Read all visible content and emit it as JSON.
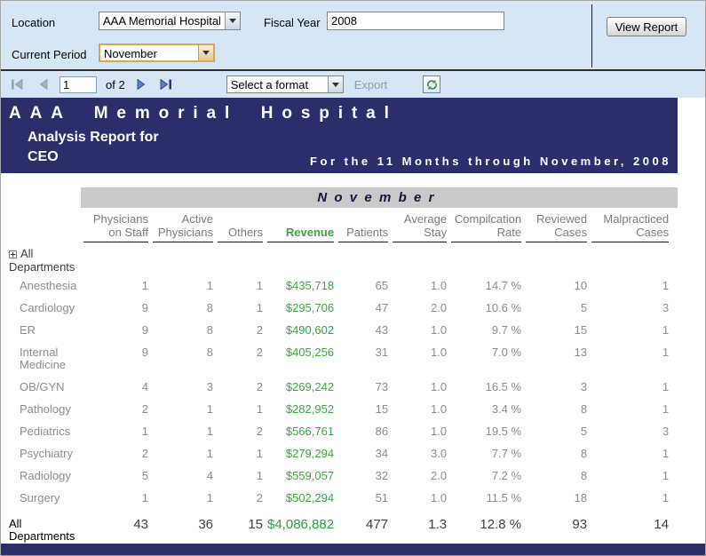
{
  "params": {
    "location_label": "Location",
    "location_value": "AAA Memorial Hospital",
    "fiscal_year_label": "Fiscal Year",
    "fiscal_year_value": "2008",
    "current_period_label": "Current Period",
    "current_period_value": "November",
    "view_report_label": "View Report"
  },
  "toolbar": {
    "page_value": "1",
    "of_label": "of 2",
    "format_value": "Select a format",
    "export_label": "Export",
    "icons": [
      "first-page-icon",
      "previous-page-icon",
      "next-page-icon",
      "last-page-icon",
      "refresh-icon"
    ]
  },
  "report": {
    "title": "AAA Memorial Hospital",
    "subtitle": "Analysis Report for",
    "audience": "CEO",
    "period_line": "For the 11 Months through November, 2008",
    "month_band": "November"
  },
  "table": {
    "columns": [
      "Physicians on Staff",
      "Active Physicians",
      "Others",
      "Revenue",
      "Patients",
      "Average Stay",
      "Compilcation Rate",
      "Reviewed Cases",
      "Malpracticed Cases"
    ],
    "expand_row_label": "All Departments",
    "rows": [
      {
        "name": "Anesthesia",
        "values": [
          "1",
          "1",
          "1",
          "$435,718",
          "65",
          "1.0",
          "14.7 %",
          "10",
          "1"
        ]
      },
      {
        "name": "Cardiology",
        "values": [
          "9",
          "8",
          "1",
          "$295,706",
          "47",
          "2.0",
          "10.6 %",
          "5",
          "3"
        ]
      },
      {
        "name": "ER",
        "values": [
          "9",
          "8",
          "2",
          "$490,602",
          "43",
          "1.0",
          "9.7 %",
          "15",
          "1"
        ]
      },
      {
        "name": "Internal Medicine",
        "values": [
          "9",
          "8",
          "2",
          "$405,256",
          "31",
          "1.0",
          "7.0 %",
          "13",
          "1"
        ]
      },
      {
        "name": "OB/GYN",
        "values": [
          "4",
          "3",
          "2",
          "$269,242",
          "73",
          "1.0",
          "16.5 %",
          "3",
          "1"
        ]
      },
      {
        "name": "Pathology",
        "values": [
          "2",
          "1",
          "1",
          "$282,952",
          "15",
          "1.0",
          "3.4 %",
          "8",
          "1"
        ]
      },
      {
        "name": "Pediatrics",
        "values": [
          "1",
          "1",
          "2",
          "$566,761",
          "86",
          "1.0",
          "19.5 %",
          "5",
          "3"
        ]
      },
      {
        "name": "Psychiatry",
        "values": [
          "2",
          "1",
          "1",
          "$279,294",
          "34",
          "3.0",
          "7.7 %",
          "8",
          "1"
        ]
      },
      {
        "name": "Radiology",
        "values": [
          "5",
          "4",
          "1",
          "$559,057",
          "32",
          "2.0",
          "7.2 %",
          "8",
          "1"
        ]
      },
      {
        "name": "Surgery",
        "values": [
          "1",
          "1",
          "2",
          "$502,294",
          "51",
          "1.0",
          "11.5 %",
          "18",
          "1"
        ]
      }
    ],
    "total": {
      "name": "All Departments",
      "values": [
        "43",
        "36",
        "15",
        "$4,086,882",
        "477",
        "1.3",
        "12.8 %",
        "93",
        "14"
      ]
    }
  },
  "colors": {
    "band_navy": "#2c2e6b",
    "panel_blue": "#d7e6f4",
    "month_band_gray": "#c9c9c9",
    "revenue_green": "#3aa73f",
    "data_gray": "#8d8d8d",
    "header_gray": "#7c7c7c",
    "focus_border": "#dca455"
  }
}
